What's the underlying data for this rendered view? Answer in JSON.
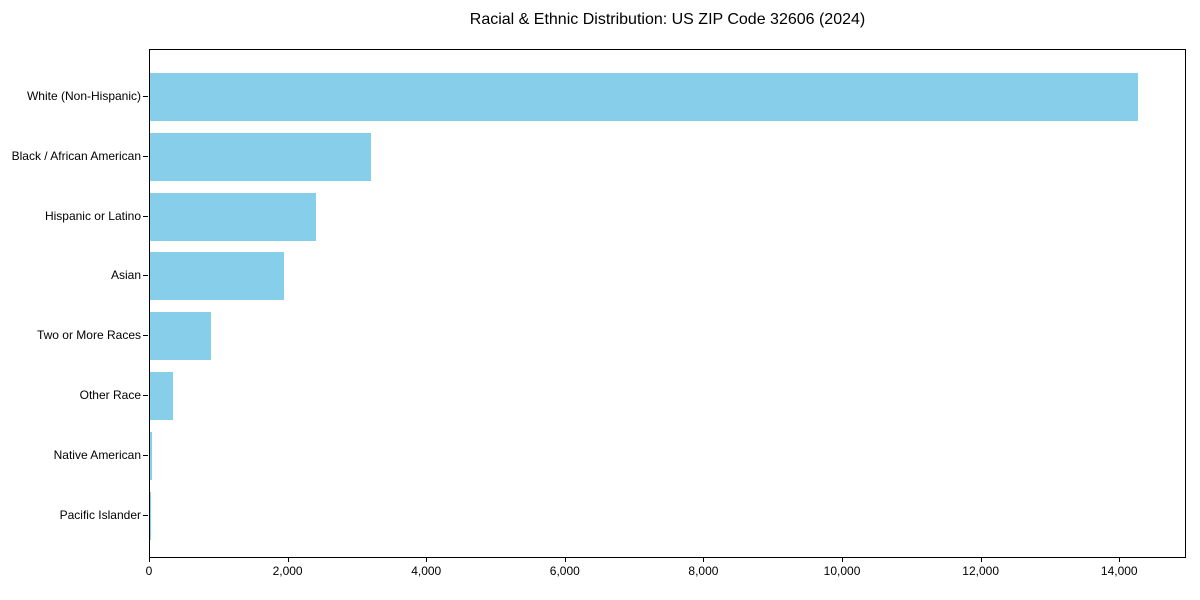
{
  "title": "Racial & Ethnic Distribution: US ZIP Code 32606 (2024)",
  "chart_data": {
    "type": "bar",
    "orientation": "horizontal",
    "title": "Racial & Ethnic Distribution: US ZIP Code 32606 (2024)",
    "categories": [
      "White (Non-Hispanic)",
      "Black / African American",
      "Hispanic or Latino",
      "Asian",
      "Two or More Races",
      "Other Race",
      "Native American",
      "Pacific Islander"
    ],
    "values": [
      14250,
      3190,
      2390,
      1940,
      875,
      330,
      25,
      5
    ],
    "xlabel": "",
    "ylabel": "",
    "xlim": [
      0,
      14963
    ],
    "x_ticks": [
      0,
      2000,
      4000,
      6000,
      8000,
      10000,
      12000,
      14000
    ],
    "x_tick_labels": [
      "0",
      "2,000",
      "4,000",
      "6,000",
      "8,000",
      "10,000",
      "12,000",
      "14,000"
    ],
    "bar_color": "#87CEEB",
    "axis_color": "#000000",
    "background_color": "#ffffff",
    "grid": false,
    "legend": null
  }
}
